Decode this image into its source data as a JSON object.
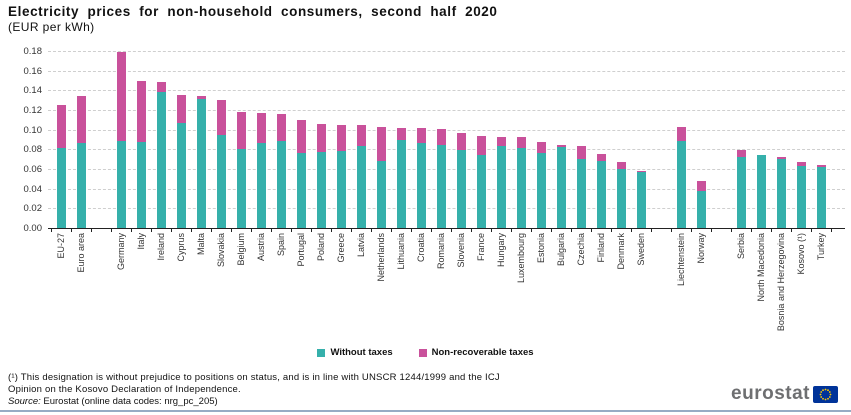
{
  "title": "Electricity prices for non-household consumers, second half 2020",
  "subtitle": "(EUR per kWh)",
  "legend": {
    "items": [
      {
        "label": "Without taxes",
        "color": "#35b0ab"
      },
      {
        "label": "Non-recoverable taxes",
        "color": "#c9519b"
      }
    ]
  },
  "colors": {
    "without_taxes": "#35b0ab",
    "non_recoverable_taxes": "#c9519b",
    "grid": "#cfcfcf",
    "axis": "#222222",
    "bottom_rule": "#96abc4"
  },
  "chart_data": {
    "type": "bar",
    "stacked": true,
    "title": "Electricity prices for non-household consumers, second half 2020",
    "ylabel": "EUR per kWh",
    "y_axis": {
      "min": 0,
      "max": 0.18,
      "step": 0.02,
      "grid": true
    },
    "legend_position": "bottom",
    "series_names": [
      "Without taxes",
      "Non-recoverable taxes"
    ],
    "categories": [
      {
        "label": "EU-27",
        "without_taxes": 0.081,
        "non_recoverable_taxes": 0.044
      },
      {
        "label": "Euro area",
        "without_taxes": 0.086,
        "non_recoverable_taxes": 0.048
      },
      {
        "label": "",
        "spacer": true
      },
      {
        "label": "Germany",
        "without_taxes": 0.088,
        "non_recoverable_taxes": 0.091
      },
      {
        "label": "Italy",
        "without_taxes": 0.087,
        "non_recoverable_taxes": 0.063
      },
      {
        "label": "Ireland",
        "without_taxes": 0.138,
        "non_recoverable_taxes": 0.01
      },
      {
        "label": "Cyprus",
        "without_taxes": 0.107,
        "non_recoverable_taxes": 0.028
      },
      {
        "label": "Malta",
        "without_taxes": 0.131,
        "non_recoverable_taxes": 0.003
      },
      {
        "label": "Slovakia",
        "without_taxes": 0.095,
        "non_recoverable_taxes": 0.035
      },
      {
        "label": "Belgium",
        "without_taxes": 0.08,
        "non_recoverable_taxes": 0.038
      },
      {
        "label": "Austria",
        "without_taxes": 0.086,
        "non_recoverable_taxes": 0.031
      },
      {
        "label": "Spain",
        "without_taxes": 0.088,
        "non_recoverable_taxes": 0.028
      },
      {
        "label": "Portugal",
        "without_taxes": 0.076,
        "non_recoverable_taxes": 0.034
      },
      {
        "label": "Poland",
        "without_taxes": 0.077,
        "non_recoverable_taxes": 0.029
      },
      {
        "label": "Greece",
        "without_taxes": 0.078,
        "non_recoverable_taxes": 0.027
      },
      {
        "label": "Latvia",
        "without_taxes": 0.083,
        "non_recoverable_taxes": 0.022
      },
      {
        "label": "Netherlands",
        "without_taxes": 0.068,
        "non_recoverable_taxes": 0.035
      },
      {
        "label": "Lithuania",
        "without_taxes": 0.089,
        "non_recoverable_taxes": 0.013
      },
      {
        "label": "Croatia",
        "without_taxes": 0.086,
        "non_recoverable_taxes": 0.016
      },
      {
        "label": "Romania",
        "without_taxes": 0.084,
        "non_recoverable_taxes": 0.017
      },
      {
        "label": "Slovenia",
        "without_taxes": 0.079,
        "non_recoverable_taxes": 0.018
      },
      {
        "label": "France",
        "without_taxes": 0.074,
        "non_recoverable_taxes": 0.02
      },
      {
        "label": "Hungary",
        "without_taxes": 0.083,
        "non_recoverable_taxes": 0.01
      },
      {
        "label": "Luxembourg",
        "without_taxes": 0.081,
        "non_recoverable_taxes": 0.012
      },
      {
        "label": "Estonia",
        "without_taxes": 0.076,
        "non_recoverable_taxes": 0.011
      },
      {
        "label": "Bulgaria",
        "without_taxes": 0.082,
        "non_recoverable_taxes": 0.002
      },
      {
        "label": "Czechia",
        "without_taxes": 0.07,
        "non_recoverable_taxes": 0.013
      },
      {
        "label": "Finland",
        "without_taxes": 0.068,
        "non_recoverable_taxes": 0.007
      },
      {
        "label": "Denmark",
        "without_taxes": 0.06,
        "non_recoverable_taxes": 0.007
      },
      {
        "label": "Sweden",
        "without_taxes": 0.057,
        "non_recoverable_taxes": 0.001
      },
      {
        "label": "",
        "spacer": true
      },
      {
        "label": "Liechtenstein",
        "without_taxes": 0.088,
        "non_recoverable_taxes": 0.015
      },
      {
        "label": "Norway",
        "without_taxes": 0.038,
        "non_recoverable_taxes": 0.01
      },
      {
        "label": "",
        "spacer": true
      },
      {
        "label": "Serbia",
        "without_taxes": 0.072,
        "non_recoverable_taxes": 0.007
      },
      {
        "label": "North Macedonia",
        "without_taxes": 0.074,
        "non_recoverable_taxes": 0.0
      },
      {
        "label": "Bosnia and Herzegovina",
        "without_taxes": 0.07,
        "non_recoverable_taxes": 0.002
      },
      {
        "label": "Kosovo (¹)",
        "without_taxes": 0.063,
        "non_recoverable_taxes": 0.004
      },
      {
        "label": "Turkey",
        "without_taxes": 0.062,
        "non_recoverable_taxes": 0.002
      }
    ]
  },
  "footnote_line1": "(¹) This designation is without prejudice to positions on status, and is in line with UNSCR 1244/1999 and the ICJ",
  "footnote_line2": "Opinion on the Kosovo Declaration of Independence.",
  "source": {
    "prefix": "Source:",
    "text": " Eurostat (online data codes: nrg_pc_205)"
  },
  "logo": {
    "text": "eurostat",
    "flag_icon": "eu-flag-icon"
  }
}
